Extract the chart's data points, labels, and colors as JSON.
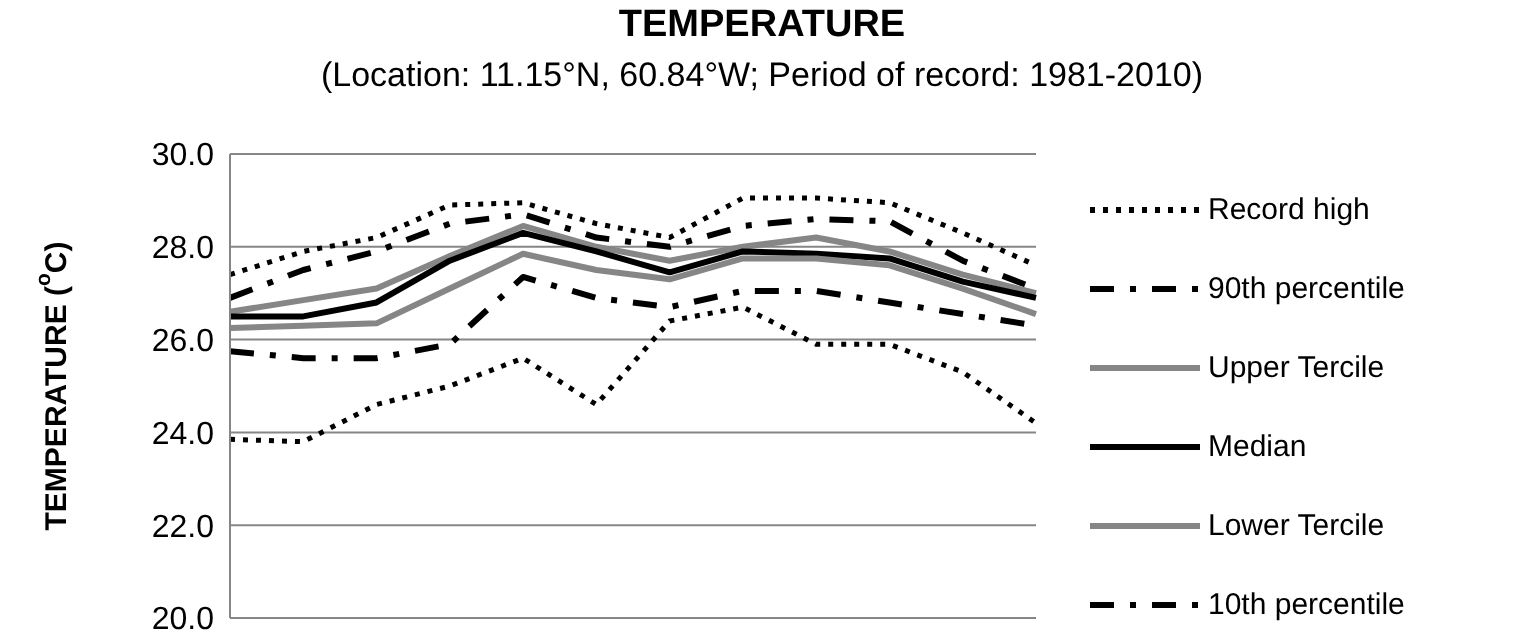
{
  "chart_data": {
    "type": "line",
    "title": "TEMPERATURE",
    "subtitle": "(Location: 11.15°N, 60.84°W; Period of record: 1981-2010)",
    "ylabel": "TEMPERATURE ($^{o}$C)",
    "categories": [
      null,
      null,
      null,
      null,
      null,
      null,
      null,
      null,
      null,
      null,
      null,
      null
    ],
    "ylim": [
      20,
      30
    ],
    "yticks": [
      {
        "value": 20,
        "label": "20.0"
      },
      {
        "value": 22,
        "label": "22.0"
      },
      {
        "value": 24,
        "label": "24.0"
      },
      {
        "value": 26,
        "label": "26.0"
      },
      {
        "value": 28,
        "label": "28.0"
      },
      {
        "value": 30,
        "label": "30.0"
      }
    ],
    "grid": "y",
    "legend": "right",
    "marker": "none",
    "series": [
      {
        "name": "Record high",
        "color": "#000000",
        "line_style": "dotted",
        "values": [
          27.4,
          27.9,
          28.2,
          28.9,
          28.95,
          28.5,
          28.2,
          29.05,
          29.05,
          28.95,
          28.3,
          27.6
        ]
      },
      {
        "name": "90th percentile",
        "color": "#000000",
        "line_style": "dashdot",
        "values": [
          26.9,
          27.5,
          27.9,
          28.5,
          28.7,
          28.2,
          28.0,
          28.45,
          28.6,
          28.55,
          27.7,
          27.1
        ]
      },
      {
        "name": "Upper Tercile",
        "color": "#868686",
        "line_style": "solid",
        "values": [
          26.6,
          26.85,
          27.1,
          27.8,
          28.45,
          28.0,
          27.7,
          28.0,
          28.2,
          27.9,
          27.4,
          27.0
        ]
      },
      {
        "name": "Median",
        "color": "#000000",
        "line_style": "solid",
        "values": [
          26.5,
          26.5,
          26.8,
          27.7,
          28.3,
          27.9,
          27.45,
          27.9,
          27.85,
          27.75,
          27.25,
          26.9
        ]
      },
      {
        "name": "Lower Tercile",
        "color": "#868686",
        "line_style": "solid",
        "values": [
          26.25,
          26.3,
          26.35,
          27.1,
          27.85,
          27.5,
          27.3,
          27.75,
          27.75,
          27.6,
          27.1,
          26.55
        ]
      },
      {
        "name": "10th percentile",
        "color": "#000000",
        "line_style": "dashdot",
        "values": [
          25.75,
          25.6,
          25.6,
          25.9,
          27.35,
          26.9,
          26.7,
          27.05,
          27.05,
          26.8,
          26.55,
          26.3
        ]
      },
      {
        "color": "#000000",
        "line_style": "dotted",
        "values": [
          23.85,
          23.8,
          24.6,
          25.0,
          25.6,
          24.6,
          26.4,
          26.7,
          25.9,
          25.9,
          25.3,
          24.2
        ]
      }
    ]
  }
}
